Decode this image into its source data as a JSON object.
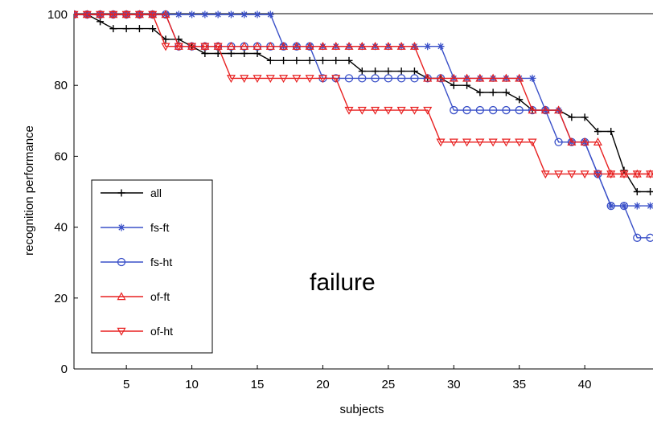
{
  "chart_data": {
    "type": "line",
    "xlabel": "subjects",
    "ylabel": "recognition performance",
    "xlim": [
      1,
      45
    ],
    "ylim": [
      0,
      100
    ],
    "xticks": [
      5,
      10,
      15,
      20,
      25,
      30,
      35,
      40
    ],
    "yticks": [
      0,
      20,
      40,
      60,
      80,
      100
    ],
    "grid": false,
    "legend_position": "bottom-left",
    "annotation": "failure",
    "colors": {
      "all": "#000000",
      "fs-ft": "#3a50c8",
      "fs-ht": "#3a50c8",
      "of-ft": "#e82020",
      "of-ht": "#e82020"
    },
    "series": [
      {
        "name": "all",
        "marker": "plus",
        "x": [
          1,
          2,
          3,
          4,
          5,
          6,
          7,
          8,
          9,
          10,
          11,
          12,
          13,
          14,
          15,
          16,
          17,
          18,
          19,
          20,
          21,
          22,
          23,
          24,
          25,
          26,
          27,
          28,
          29,
          30,
          31,
          32,
          33,
          34,
          35,
          36,
          37,
          38,
          39,
          40,
          41,
          42,
          43,
          44,
          45
        ],
        "y": [
          100,
          100,
          98,
          96,
          96,
          96,
          96,
          93,
          93,
          91,
          89,
          89,
          89,
          89,
          89,
          87,
          87,
          87,
          87,
          87,
          87,
          87,
          84,
          84,
          84,
          84,
          84,
          82,
          82,
          80,
          80,
          78,
          78,
          78,
          76,
          73,
          73,
          73,
          71,
          71,
          67,
          67,
          56,
          50,
          50
        ]
      },
      {
        "name": "fs-ft",
        "marker": "star",
        "x": [
          1,
          2,
          3,
          4,
          5,
          6,
          7,
          8,
          9,
          10,
          11,
          12,
          13,
          14,
          15,
          16,
          17,
          18,
          19,
          20,
          21,
          22,
          23,
          24,
          25,
          26,
          27,
          28,
          29,
          30,
          31,
          32,
          33,
          34,
          35,
          36,
          37,
          38,
          39,
          40,
          41,
          42,
          43,
          44,
          45
        ],
        "y": [
          100,
          100,
          100,
          100,
          100,
          100,
          100,
          100,
          100,
          100,
          100,
          100,
          100,
          100,
          100,
          100,
          91,
          91,
          91,
          91,
          91,
          91,
          91,
          91,
          91,
          91,
          91,
          91,
          91,
          82,
          82,
          82,
          82,
          82,
          82,
          82,
          73,
          73,
          64,
          64,
          55,
          46,
          46,
          46,
          46
        ]
      },
      {
        "name": "fs-ht",
        "marker": "circle",
        "x": [
          1,
          2,
          3,
          4,
          5,
          6,
          7,
          8,
          9,
          10,
          11,
          12,
          13,
          14,
          15,
          16,
          17,
          18,
          19,
          20,
          21,
          22,
          23,
          24,
          25,
          26,
          27,
          28,
          29,
          30,
          31,
          32,
          33,
          34,
          35,
          36,
          37,
          38,
          39,
          40,
          41,
          42,
          43,
          44,
          45
        ],
        "y": [
          100,
          100,
          100,
          100,
          100,
          100,
          100,
          100,
          91,
          91,
          91,
          91,
          91,
          91,
          91,
          91,
          91,
          91,
          91,
          82,
          82,
          82,
          82,
          82,
          82,
          82,
          82,
          82,
          82,
          73,
          73,
          73,
          73,
          73,
          73,
          73,
          73,
          64,
          64,
          64,
          55,
          46,
          46,
          37,
          37
        ]
      },
      {
        "name": "of-ft",
        "marker": "triangle-up",
        "x": [
          1,
          2,
          3,
          4,
          5,
          6,
          7,
          8,
          9,
          10,
          11,
          12,
          13,
          14,
          15,
          16,
          17,
          18,
          19,
          20,
          21,
          22,
          23,
          24,
          25,
          26,
          27,
          28,
          29,
          30,
          31,
          32,
          33,
          34,
          35,
          36,
          37,
          38,
          39,
          40,
          41,
          42,
          43,
          44,
          45
        ],
        "y": [
          100,
          100,
          100,
          100,
          100,
          100,
          100,
          100,
          91,
          91,
          91,
          91,
          91,
          91,
          91,
          91,
          91,
          91,
          91,
          91,
          91,
          91,
          91,
          91,
          91,
          91,
          91,
          82,
          82,
          82,
          82,
          82,
          82,
          82,
          82,
          73,
          73,
          73,
          64,
          64,
          64,
          55,
          55,
          55,
          55
        ]
      },
      {
        "name": "of-ht",
        "marker": "triangle-down",
        "x": [
          1,
          2,
          3,
          4,
          5,
          6,
          7,
          8,
          9,
          10,
          11,
          12,
          13,
          14,
          15,
          16,
          17,
          18,
          19,
          20,
          21,
          22,
          23,
          24,
          25,
          26,
          27,
          28,
          29,
          30,
          31,
          32,
          33,
          34,
          35,
          36,
          37,
          38,
          39,
          40,
          41,
          42,
          43,
          44,
          45
        ],
        "y": [
          100,
          100,
          100,
          100,
          100,
          100,
          100,
          91,
          91,
          91,
          91,
          91,
          82,
          82,
          82,
          82,
          82,
          82,
          82,
          82,
          82,
          73,
          73,
          73,
          73,
          73,
          73,
          73,
          64,
          64,
          64,
          64,
          64,
          64,
          64,
          64,
          55,
          55,
          55,
          55,
          55,
          55,
          55,
          55,
          55
        ]
      }
    ]
  }
}
